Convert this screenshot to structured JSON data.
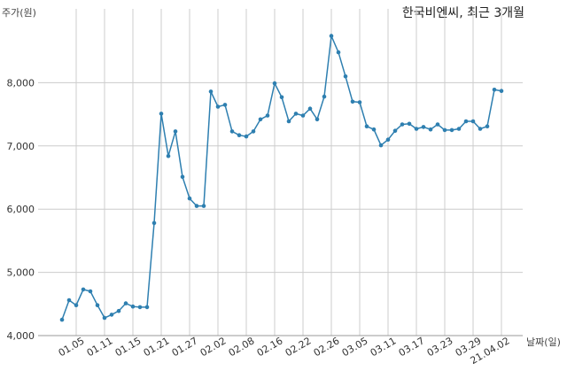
{
  "chart_data": {
    "type": "line",
    "title": "한국비엔씨, 최근 3개월",
    "ylabel": "주가(원)",
    "xlabel": "날짜(일)",
    "ylim": [
      4000,
      9000
    ],
    "yticks": [
      4000,
      5000,
      6000,
      7000,
      8000
    ],
    "ytick_labels": [
      "4,000",
      "5,000",
      "6,000",
      "7,000",
      "8,000"
    ],
    "xtick_labels": [
      "01.05",
      "01.11",
      "01.15",
      "01.21",
      "01.27",
      "02.02",
      "02.08",
      "02.16",
      "02.22",
      "02.26",
      "03.05",
      "03.11",
      "03.17",
      "03.23",
      "03.29",
      "21.04.02"
    ],
    "grid": true,
    "color": "#2e7fb0",
    "values": [
      4250,
      4560,
      4480,
      4730,
      4700,
      4480,
      4280,
      4330,
      4390,
      4510,
      4460,
      4450,
      4450,
      5780,
      7510,
      6840,
      7230,
      6510,
      6170,
      6050,
      6050,
      7860,
      7620,
      7650,
      7230,
      7170,
      7150,
      7230,
      7420,
      7480,
      7990,
      7770,
      7390,
      7510,
      7480,
      7590,
      7420,
      7780,
      8740,
      8480,
      8100,
      7700,
      7690,
      7310,
      7260,
      7010,
      7100,
      7240,
      7340,
      7350,
      7270,
      7300,
      7260,
      7340,
      7250,
      7250,
      7270,
      7390,
      7390,
      7270,
      7310,
      7890,
      7870
    ]
  }
}
